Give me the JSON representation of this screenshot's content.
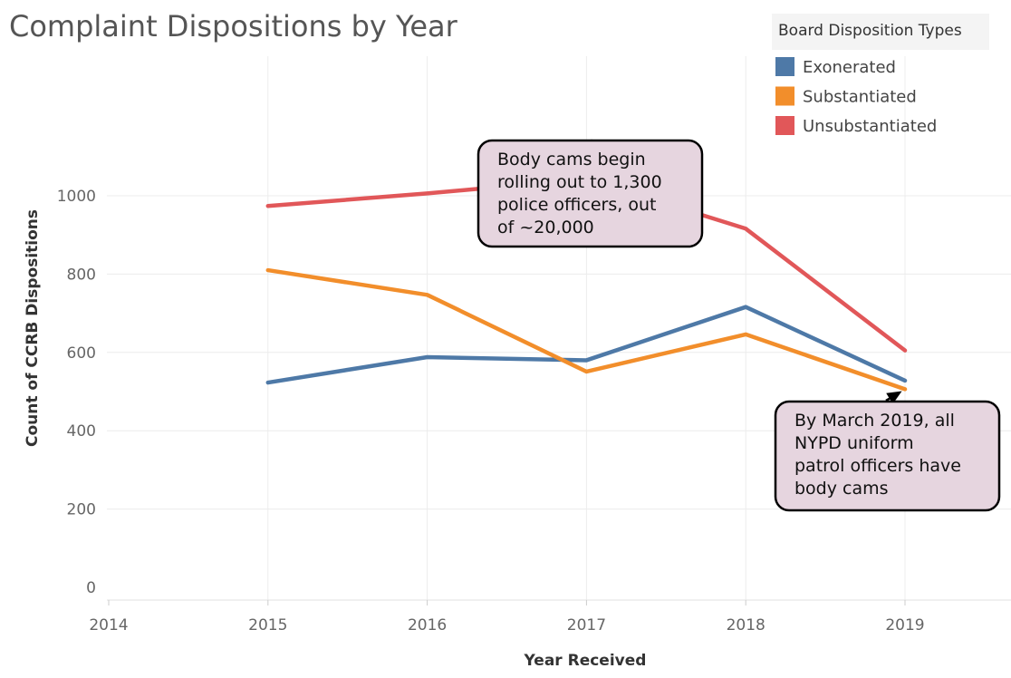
{
  "chart_data": {
    "type": "line",
    "title": "Complaint Dispositions by Year",
    "xlabel": "Year Received",
    "ylabel": "Count of CCRB Dispositions",
    "categories": [
      "2014",
      "2015",
      "2016",
      "2017",
      "2018",
      "2019"
    ],
    "ylim": [
      0,
      1000
    ],
    "yticks": [
      "0",
      "200",
      "400",
      "600",
      "800",
      "1000"
    ],
    "grid": true,
    "legend": {
      "title": "Board Disposition Types",
      "position": "top-right"
    },
    "series": [
      {
        "name": "Exonerated",
        "color": "#4e79a7",
        "x": [
          "2015",
          "2016",
          "2017",
          "2018",
          "2019"
        ],
        "values": [
          523,
          588,
          580,
          716,
          528
        ]
      },
      {
        "name": "Substantiated",
        "color": "#f28e2b",
        "x": [
          "2015",
          "2016",
          "2017",
          "2018",
          "2019"
        ],
        "values": [
          810,
          747,
          551,
          646,
          506
        ]
      },
      {
        "name": "Unsubstantiated",
        "color": "#e15759",
        "x": [
          "2015",
          "2016",
          "2017",
          "2018",
          "2019"
        ],
        "values": [
          974,
          1006,
          1043,
          916,
          605
        ]
      }
    ],
    "annotations": [
      {
        "lines": [
          "Body cams begin",
          "rolling out to 1,300",
          "police officers, out",
          "of ~20,000"
        ],
        "target_x": "2017",
        "target_series": "Unsubstantiated"
      },
      {
        "lines": [
          "By March 2019, all",
          "NYPD uniform",
          "patrol officers have",
          "body cams"
        ],
        "target_x": "2019",
        "target_series": "Substantiated"
      }
    ]
  }
}
